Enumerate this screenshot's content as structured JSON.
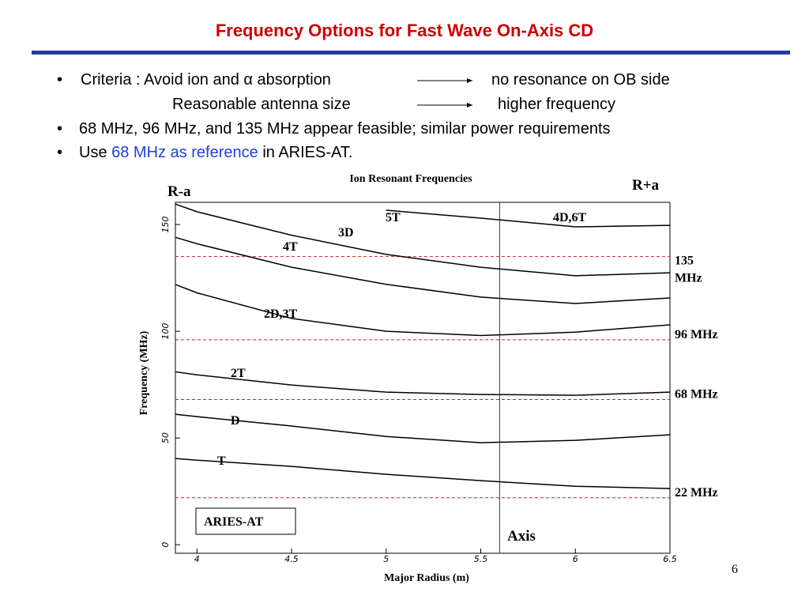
{
  "slide": {
    "title": "Frequency Options for Fast Wave On-Axis CD",
    "bullets": [
      {
        "lead": "Criteria :  Avoid ion and α absorption",
        "result": "no resonance on OB side",
        "lead2": "Reasonable antenna size",
        "result2": "higher frequency"
      },
      {
        "text": "68 MHz, 96 MHz, and 135 MHz appear feasible;  similar power requirements"
      },
      {
        "pre": "Use ",
        "highlight": "68 MHz as reference",
        "post": " in ARIES-AT."
      }
    ],
    "page_number": "6"
  },
  "chart_data": {
    "type": "line",
    "title": "Ion Resonant Frequencies",
    "xlabel": "Major Radius  (m)",
    "ylabel": "Frequency (MHz)",
    "xlim": [
      3.886,
      6.5
    ],
    "ylim": [
      -4,
      160.4
    ],
    "xticks": [
      4,
      4.5,
      5,
      5.5,
      6,
      6.5
    ],
    "yticks": [
      0,
      50,
      100,
      150
    ],
    "x": [
      3.886,
      4,
      4.5,
      5,
      5.5,
      6,
      6.5
    ],
    "series": [
      {
        "name": "T",
        "color": "#000000",
        "values": [
          40.4,
          39.6,
          36.7,
          33,
          30,
          27.4,
          26.3
        ]
      },
      {
        "name": "D",
        "color": "#000000",
        "values": [
          61.1,
          60,
          55.6,
          50.7,
          47.8,
          48.9,
          51.5
        ]
      },
      {
        "name": "2T",
        "color": "#000000",
        "values": [
          81,
          79.6,
          74.8,
          71.5,
          70.4,
          70,
          71.5
        ]
      },
      {
        "name": "2D,3T",
        "color": "#000000",
        "values": [
          121.9,
          118,
          106,
          100,
          98,
          99.6,
          103
        ]
      },
      {
        "name": "4T",
        "color": "#000000",
        "values": [
          144,
          141,
          130,
          122,
          116,
          113,
          115.6
        ]
      },
      {
        "name": "3D",
        "color": "#000000",
        "values": [
          159.6,
          156,
          145,
          136,
          130,
          126,
          127.4
        ]
      },
      {
        "name": "4D,6T",
        "color": "#000000",
        "values": [
          null,
          null,
          null,
          156.7,
          153,
          148.9,
          149.6
        ]
      }
    ],
    "annotations": [
      "5T",
      "R-a",
      "R+a",
      "ARIES-AT",
      "Axis"
    ],
    "axis_line": {
      "value": 5.6,
      "color": "#3030c0"
    },
    "reference_lines": [
      {
        "value": 135,
        "label": "135 MHz"
      },
      {
        "value": 96,
        "label": "96 MHz"
      },
      {
        "value": 68,
        "label": "68 MHz"
      },
      {
        "value": 22,
        "label": "22 MHz"
      }
    ],
    "reference_color": "#d02020"
  }
}
